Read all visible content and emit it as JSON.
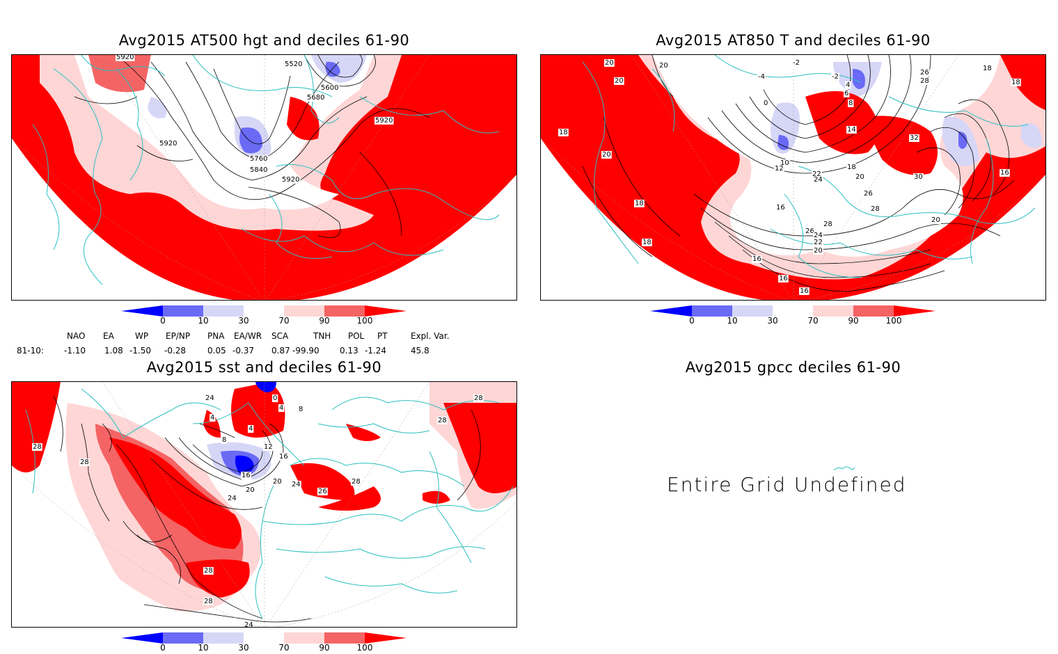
{
  "panels": [
    {
      "id": "hgt500",
      "title": "Avg2015 AT500 hgt and deciles 61-90",
      "contour_labels": [
        "5920",
        "5520",
        "5600",
        "5680",
        "5920",
        "5920",
        "5760",
        "5840",
        "5920"
      ]
    },
    {
      "id": "t850",
      "title": "Avg2015 AT850 T and deciles 61-90",
      "contour_labels": [
        "20",
        "-2",
        "20",
        "20",
        "-4",
        "-2",
        "4",
        "26",
        "18",
        "28",
        "18",
        "6",
        "8",
        "0",
        "18",
        "14",
        "32",
        "20",
        "10",
        "12",
        "18",
        "20",
        "22",
        "24",
        "16",
        "30",
        "18",
        "26",
        "28",
        "20",
        "18",
        "28",
        "26",
        "24",
        "22",
        "20",
        "16",
        "16",
        "16",
        "16"
      ]
    },
    {
      "id": "sst",
      "title": "Avg2015 sst and deciles 61-90",
      "contour_labels": [
        "28",
        "24",
        "0",
        "4",
        "4",
        "8",
        "4",
        "12",
        "8",
        "28",
        "16",
        "16",
        "20",
        "20",
        "24",
        "24",
        "26",
        "28",
        "28",
        "28",
        "28",
        "24"
      ]
    },
    {
      "id": "gpcc",
      "title": "Avg2015 gpcc deciles 61-90",
      "message": "Entire Grid Undefined"
    }
  ],
  "colorbar": {
    "labels": [
      "0",
      "10",
      "30",
      "70",
      "90",
      "100"
    ],
    "colors": [
      "#0000ff",
      "#6a6af5",
      "#d6d6f7",
      "#ffffff",
      "#ffd6d6",
      "#f46464",
      "#ff0000"
    ]
  },
  "indices": {
    "headers": [
      "NAO",
      "EA",
      "WP",
      "EP/NP",
      "PNA",
      "EA/WR",
      "SCA",
      "TNH",
      "POL",
      "PT",
      "Expl. Var."
    ],
    "row_label": "81-10:",
    "values": [
      "-1.10",
      "1.08",
      "-1.50",
      "-0.28",
      "0.05",
      "-0.37",
      "0.87",
      "-99.90",
      "0.13",
      "-1.24",
      "45.8"
    ]
  },
  "colors": {
    "coast": "#2bbfbf",
    "contour": "#000000",
    "red": "#ff0000",
    "lightred": "#ffd6d6",
    "midred": "#f46464",
    "blue": "#6a6af5",
    "darkblue": "#0000ff",
    "lightblue": "#d6d6f7"
  }
}
